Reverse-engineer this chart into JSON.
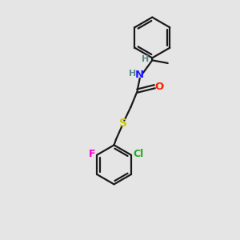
{
  "background_color": "#e5e5e5",
  "bond_color": "#1a1a1a",
  "atom_colors": {
    "N": "#1a1aff",
    "O": "#ff2000",
    "S": "#cccc00",
    "F": "#ff00cc",
    "Cl": "#22aa22",
    "H": "#5a8a8a",
    "C": "#1a1a1a"
  },
  "figsize": [
    3.0,
    3.0
  ],
  "dpi": 100,
  "xlim": [
    0,
    10
  ],
  "ylim": [
    0,
    10
  ]
}
